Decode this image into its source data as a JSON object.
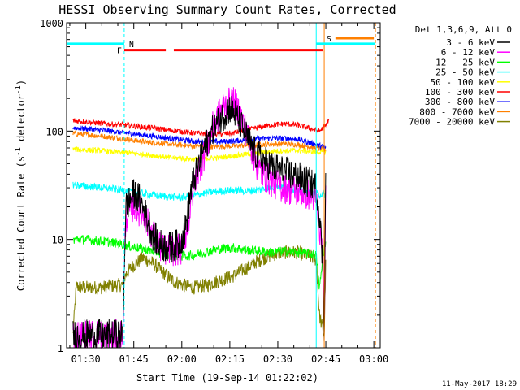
{
  "chart_data": {
    "type": "line",
    "title": "HESSI Observing Summary Count Rates, Corrected",
    "xlabel": "Start Time (19-Sep-14 01:22:02)",
    "ylabel": "Corrected Count Rate (s",
    "ylabel_sup1": "-1",
    "ylabel_mid": " detector",
    "ylabel_sup2": "-1",
    "ylabel_end": ")",
    "y_scale": "log",
    "ylim": [
      1,
      1000
    ],
    "xlim": [
      "01:24",
      "03:02"
    ],
    "x_tick_labels": [
      "01:30",
      "01:45",
      "02:00",
      "02:15",
      "02:30",
      "02:45",
      "03:00"
    ],
    "x_tick_minutes": [
      90,
      105,
      120,
      135,
      150,
      165,
      180
    ],
    "x_range_minutes": [
      84,
      182
    ],
    "y_tick_labels": [
      "1",
      "10",
      "100",
      "1000"
    ],
    "y_tick_values": [
      1,
      10,
      100,
      1000
    ],
    "legend_header": "Det 1,3,6,9, Att 0",
    "legend_placement": "right",
    "footer_date": "11-May-2017 18:29",
    "flags": [
      {
        "label": "N",
        "color": "#00ffff",
        "segments": [
          [
            84,
            102
          ]
        ],
        "level": 640
      },
      {
        "label": "F",
        "color": "#ff0000",
        "segments": [
          [
            102,
            115
          ],
          [
            117.5,
            164
          ]
        ],
        "level": 560
      },
      {
        "label": "S",
        "color": "#ff8000",
        "segments": [
          [
            168,
            180
          ]
        ],
        "level": 720
      },
      {
        "color": "#00ffff",
        "segments": [
          [
            162,
            180.5
          ]
        ],
        "level": 640
      }
    ],
    "vlines": [
      {
        "minute": 102,
        "color": "#00ffff",
        "dash": true
      },
      {
        "minute": 162,
        "color": "#00ffff",
        "dash": false
      },
      {
        "minute": 164.5,
        "color": "#ff8000",
        "dash": false
      },
      {
        "minute": 180.5,
        "color": "#ff8000",
        "dash": true
      }
    ],
    "series": [
      {
        "name": "3 - 6 keV",
        "color": "#000000",
        "noise": 0.3,
        "points": [
          [
            86,
            1.3
          ],
          [
            98,
            1.3
          ],
          [
            101.5,
            1.3
          ],
          [
            102.5,
            20
          ],
          [
            105,
            26
          ],
          [
            107,
            23
          ],
          [
            109,
            16
          ],
          [
            111,
            11
          ],
          [
            113,
            9
          ],
          [
            115,
            8.5
          ],
          [
            117,
            8.5
          ],
          [
            119,
            9
          ],
          [
            121,
            12
          ],
          [
            123,
            30
          ],
          [
            125,
            45
          ],
          [
            127,
            70
          ],
          [
            130,
            105
          ],
          [
            133,
            140
          ],
          [
            135,
            165
          ],
          [
            137,
            140
          ],
          [
            139,
            105
          ],
          [
            141,
            80
          ],
          [
            143,
            62
          ],
          [
            146,
            52
          ],
          [
            149,
            46
          ],
          [
            152,
            42
          ],
          [
            156,
            38
          ],
          [
            160,
            33
          ],
          [
            162,
            30
          ],
          [
            163,
            18
          ],
          [
            164,
            6
          ],
          [
            164.5,
            1.5
          ],
          [
            165,
            45
          ]
        ]
      },
      {
        "name": "6 - 12 keV",
        "color": "#ff00ff",
        "noise": 0.3,
        "points": [
          [
            86,
            1.3
          ],
          [
            101.5,
            1.3
          ],
          [
            102.5,
            16
          ],
          [
            105,
            21
          ],
          [
            108,
            17
          ],
          [
            111,
            11
          ],
          [
            114,
            8
          ],
          [
            117,
            8
          ],
          [
            120,
            8
          ],
          [
            122,
            14
          ],
          [
            124,
            35
          ],
          [
            127,
            60
          ],
          [
            130,
            115
          ],
          [
            133,
            170
          ],
          [
            136,
            185
          ],
          [
            138,
            150
          ],
          [
            140,
            100
          ],
          [
            142,
            66
          ],
          [
            144,
            44
          ],
          [
            146,
            38
          ],
          [
            149,
            33
          ],
          [
            152,
            30
          ],
          [
            156,
            28
          ],
          [
            160,
            26
          ],
          [
            162,
            24
          ],
          [
            163,
            12
          ],
          [
            164,
            8
          ],
          [
            164.5,
            1.5
          ],
          [
            165,
            30
          ]
        ]
      },
      {
        "name": "12 - 25 keV",
        "color": "#00ff00",
        "noise": 0.09,
        "points": [
          [
            86,
            10
          ],
          [
            90,
            10
          ],
          [
            95,
            9.6
          ],
          [
            100,
            9.2
          ],
          [
            104,
            8.6
          ],
          [
            108,
            8.2
          ],
          [
            112,
            7.7
          ],
          [
            116,
            7.2
          ],
          [
            120,
            7.0
          ],
          [
            124,
            7.2
          ],
          [
            128,
            7.7
          ],
          [
            132,
            8.2
          ],
          [
            136,
            8.4
          ],
          [
            140,
            8.0
          ],
          [
            144,
            7.8
          ],
          [
            148,
            7.6
          ],
          [
            152,
            7.8
          ],
          [
            156,
            7.6
          ],
          [
            160,
            7.4
          ],
          [
            162,
            7.2
          ],
          [
            163,
            3.5
          ],
          [
            164.5,
            8.5
          ],
          [
            165,
            9
          ]
        ]
      },
      {
        "name": "25 - 50 keV",
        "color": "#00ffff",
        "noise": 0.07,
        "points": [
          [
            86,
            32
          ],
          [
            90,
            31
          ],
          [
            95,
            30
          ],
          [
            100,
            29
          ],
          [
            104,
            27.5
          ],
          [
            108,
            26.5
          ],
          [
            112,
            25.5
          ],
          [
            116,
            24.8
          ],
          [
            120,
            24.5
          ],
          [
            124,
            25.5
          ],
          [
            128,
            27
          ],
          [
            132,
            28
          ],
          [
            136,
            28.5
          ],
          [
            140,
            28
          ],
          [
            144,
            28.5
          ],
          [
            147,
            30
          ],
          [
            150,
            31
          ],
          [
            153,
            30
          ],
          [
            156,
            28.5
          ],
          [
            160,
            27
          ],
          [
            163,
            26
          ],
          [
            165,
            26
          ]
        ]
      },
      {
        "name": "50 - 100 keV",
        "color": "#ffff00",
        "noise": 0.05,
        "points": [
          [
            86,
            68
          ],
          [
            90,
            67
          ],
          [
            95,
            66
          ],
          [
            100,
            64
          ],
          [
            104,
            63
          ],
          [
            108,
            61
          ],
          [
            112,
            59
          ],
          [
            116,
            57
          ],
          [
            120,
            56
          ],
          [
            124,
            55
          ],
          [
            128,
            56
          ],
          [
            132,
            57
          ],
          [
            136,
            59
          ],
          [
            140,
            61
          ],
          [
            144,
            63
          ],
          [
            148,
            65
          ],
          [
            152,
            66
          ],
          [
            156,
            66
          ],
          [
            160,
            65
          ],
          [
            163,
            64
          ],
          [
            165,
            64
          ]
        ]
      },
      {
        "name": "100 - 300 keV",
        "color": "#ff0000",
        "noise": 0.05,
        "points": [
          [
            86,
            125
          ],
          [
            90,
            122
          ],
          [
            95,
            118
          ],
          [
            100,
            115
          ],
          [
            104,
            112
          ],
          [
            108,
            109
          ],
          [
            112,
            106
          ],
          [
            116,
            102
          ],
          [
            120,
            99
          ],
          [
            124,
            96
          ],
          [
            128,
            94
          ],
          [
            132,
            94
          ],
          [
            136,
            96
          ],
          [
            140,
            102
          ],
          [
            144,
            108
          ],
          [
            148,
            114
          ],
          [
            152,
            117
          ],
          [
            156,
            114
          ],
          [
            160,
            106
          ],
          [
            163,
            100
          ],
          [
            165,
            112
          ],
          [
            166,
            130
          ]
        ]
      },
      {
        "name": "300 - 800 keV",
        "color": "#0000ff",
        "noise": 0.05,
        "points": [
          [
            86,
            108
          ],
          [
            90,
            105
          ],
          [
            95,
            102
          ],
          [
            100,
            98
          ],
          [
            104,
            95
          ],
          [
            108,
            92
          ],
          [
            112,
            89
          ],
          [
            116,
            86
          ],
          [
            120,
            83
          ],
          [
            124,
            80
          ],
          [
            128,
            79
          ],
          [
            132,
            80
          ],
          [
            136,
            81
          ],
          [
            140,
            83
          ],
          [
            144,
            85
          ],
          [
            148,
            86
          ],
          [
            152,
            86
          ],
          [
            156,
            84
          ],
          [
            160,
            78
          ],
          [
            164,
            72
          ],
          [
            165,
            70
          ]
        ]
      },
      {
        "name": "800 - 7000 keV",
        "color": "#ff8000",
        "noise": 0.05,
        "points": [
          [
            86,
            95
          ],
          [
            90,
            93
          ],
          [
            95,
            90
          ],
          [
            100,
            86
          ],
          [
            104,
            83
          ],
          [
            108,
            80
          ],
          [
            112,
            78
          ],
          [
            116,
            76
          ],
          [
            120,
            74
          ],
          [
            124,
            73
          ],
          [
            128,
            72
          ],
          [
            132,
            72
          ],
          [
            136,
            73
          ],
          [
            140,
            74
          ],
          [
            144,
            75
          ],
          [
            148,
            76
          ],
          [
            152,
            76
          ],
          [
            156,
            75
          ],
          [
            160,
            72
          ],
          [
            164,
            68
          ],
          [
            165,
            66
          ]
        ]
      },
      {
        "name": "7000 - 20000 keV",
        "color": "#808000",
        "noise": 0.13,
        "points": [
          [
            86,
            1.3
          ],
          [
            87,
            3.7
          ],
          [
            90,
            3.6
          ],
          [
            95,
            3.6
          ],
          [
            100,
            3.8
          ],
          [
            101.5,
            3.8
          ],
          [
            102.5,
            4.8
          ],
          [
            105,
            5.8
          ],
          [
            108,
            6.8
          ],
          [
            111,
            6.0
          ],
          [
            114,
            5.0
          ],
          [
            117,
            4.2
          ],
          [
            120,
            3.8
          ],
          [
            124,
            3.6
          ],
          [
            128,
            3.8
          ],
          [
            132,
            4.2
          ],
          [
            136,
            4.6
          ],
          [
            140,
            5.4
          ],
          [
            144,
            6.4
          ],
          [
            148,
            7.2
          ],
          [
            152,
            7.6
          ],
          [
            156,
            7.6
          ],
          [
            160,
            7.0
          ],
          [
            162,
            6.5
          ],
          [
            163,
            2.0
          ],
          [
            164.5,
            1.3
          ],
          [
            165,
            6.5
          ]
        ]
      }
    ]
  }
}
